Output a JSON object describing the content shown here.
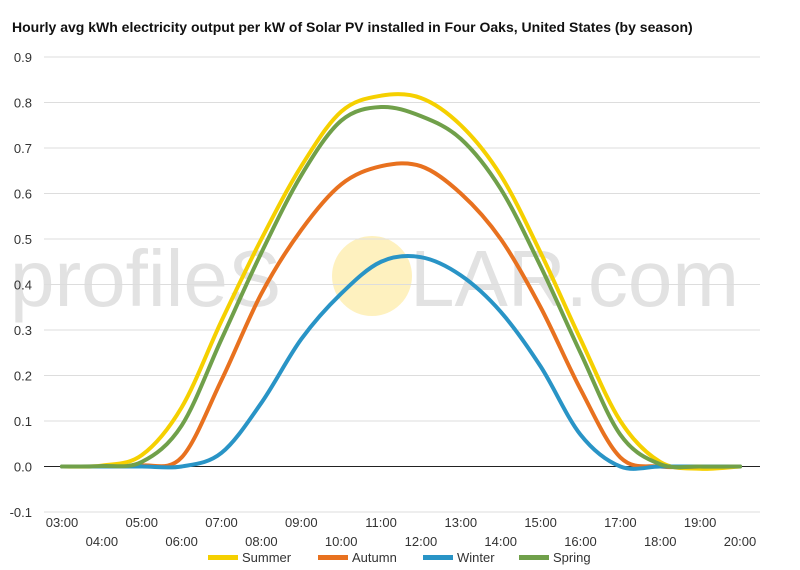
{
  "chart_data": {
    "type": "line",
    "title": "Hourly avg kWh electricity output per kW of Solar PV installed in Four Oaks, United States (by season)",
    "xlabel": "",
    "ylabel": "",
    "watermark": {
      "left": "profileS",
      "right": "LAR.com",
      "sun_color": "#fde58a"
    },
    "ylim": [
      -0.1,
      0.9
    ],
    "yticks": [
      "-0.1",
      "0.0",
      "0.1",
      "0.2",
      "0.3",
      "0.4",
      "0.5",
      "0.6",
      "0.7",
      "0.8",
      "0.9"
    ],
    "x": [
      "03:00",
      "04:00",
      "05:00",
      "06:00",
      "07:00",
      "08:00",
      "09:00",
      "10:00",
      "11:00",
      "12:00",
      "13:00",
      "14:00",
      "15:00",
      "16:00",
      "17:00",
      "18:00",
      "19:00",
      "20:00"
    ],
    "grid": true,
    "legend_position": "bottom",
    "series": [
      {
        "name": "Summer",
        "color": "#f5d000",
        "values": [
          0.0,
          0.002,
          0.025,
          0.13,
          0.32,
          0.5,
          0.66,
          0.78,
          0.815,
          0.81,
          0.75,
          0.64,
          0.47,
          0.28,
          0.1,
          0.01,
          -0.005,
          0.0
        ]
      },
      {
        "name": "Autumn",
        "color": "#e8711f",
        "values": [
          0.0,
          0.0,
          0.002,
          0.02,
          0.19,
          0.38,
          0.52,
          0.62,
          0.66,
          0.66,
          0.6,
          0.5,
          0.35,
          0.17,
          0.02,
          0.0,
          0.0,
          0.0
        ]
      },
      {
        "name": "Winter",
        "color": "#2994c6",
        "values": [
          0.0,
          0.0,
          0.0,
          0.0,
          0.03,
          0.14,
          0.28,
          0.38,
          0.45,
          0.46,
          0.42,
          0.34,
          0.22,
          0.07,
          0.0,
          0.0,
          0.0,
          0.0
        ]
      },
      {
        "name": "Spring",
        "color": "#70a04a",
        "values": [
          0.0,
          0.001,
          0.01,
          0.09,
          0.28,
          0.47,
          0.64,
          0.76,
          0.79,
          0.77,
          0.72,
          0.61,
          0.44,
          0.25,
          0.07,
          0.005,
          0.0,
          0.0
        ]
      }
    ]
  }
}
